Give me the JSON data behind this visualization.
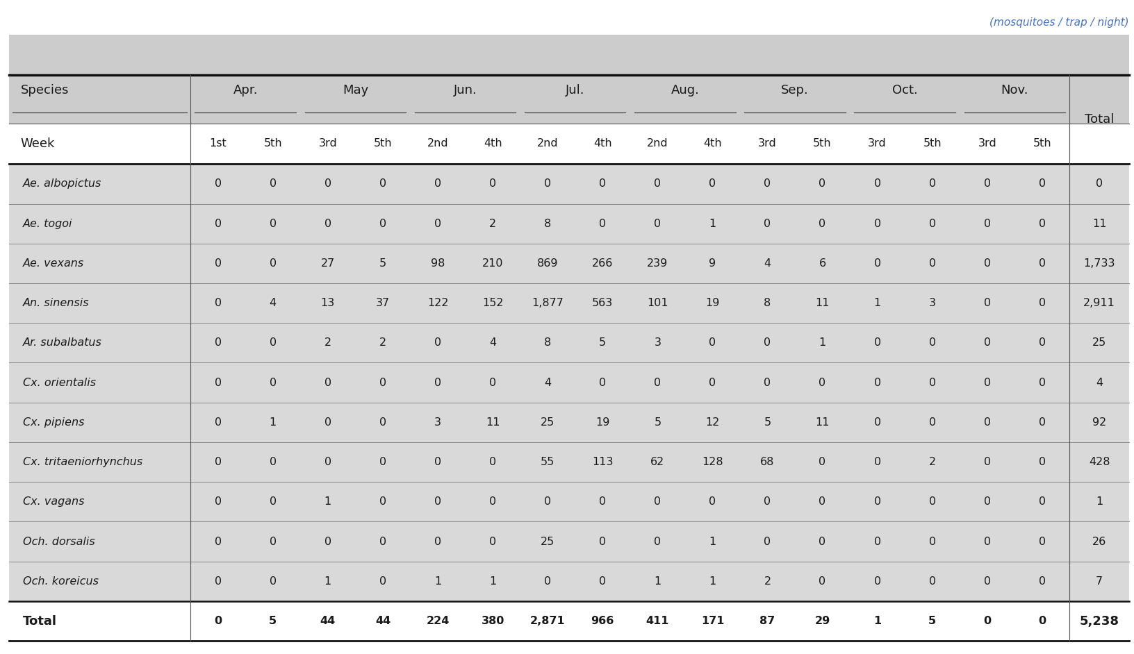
{
  "subtitle": "(mosquitoes / trap / night)",
  "months": [
    "Apr.",
    "May",
    "Jun.",
    "Jul.",
    "Aug.",
    "Sep.",
    "Oct.",
    "Nov."
  ],
  "week_labels": [
    "1st",
    "5th",
    "3rd",
    "5th",
    "2nd",
    "4th",
    "2nd",
    "4th",
    "2nd",
    "4th",
    "3rd",
    "5th",
    "3rd",
    "5th",
    "3rd",
    "5th"
  ],
  "species": [
    "Ae. albopictus",
    "Ae. togoi",
    "Ae. vexans",
    "An. sinensis",
    "Ar. subalbatus",
    "Cx. orientalis",
    "Cx. pipiens",
    "Cx. tritaeniorhynchus",
    "Cx. vagans",
    "Och. dorsalis",
    "Och. koreicus",
    "Total"
  ],
  "data": [
    [
      0,
      0,
      0,
      0,
      0,
      0,
      0,
      0,
      0,
      0,
      0,
      0,
      0,
      0,
      0,
      0
    ],
    [
      0,
      0,
      0,
      0,
      0,
      2,
      8,
      0,
      0,
      1,
      0,
      0,
      0,
      0,
      0,
      0
    ],
    [
      0,
      0,
      27,
      5,
      98,
      210,
      869,
      266,
      239,
      9,
      4,
      6,
      0,
      0,
      0,
      0
    ],
    [
      0,
      4,
      13,
      37,
      122,
      152,
      1877,
      563,
      101,
      19,
      8,
      11,
      1,
      3,
      0,
      0
    ],
    [
      0,
      0,
      2,
      2,
      0,
      4,
      8,
      5,
      3,
      0,
      0,
      1,
      0,
      0,
      0,
      0
    ],
    [
      0,
      0,
      0,
      0,
      0,
      0,
      4,
      0,
      0,
      0,
      0,
      0,
      0,
      0,
      0,
      0
    ],
    [
      0,
      1,
      0,
      0,
      3,
      11,
      25,
      19,
      5,
      12,
      5,
      11,
      0,
      0,
      0,
      0
    ],
    [
      0,
      0,
      0,
      0,
      0,
      0,
      55,
      113,
      62,
      128,
      68,
      0,
      0,
      2,
      0,
      0
    ],
    [
      0,
      0,
      1,
      0,
      0,
      0,
      0,
      0,
      0,
      0,
      0,
      0,
      0,
      0,
      0,
      0
    ],
    [
      0,
      0,
      0,
      0,
      0,
      0,
      25,
      0,
      0,
      1,
      0,
      0,
      0,
      0,
      0,
      0
    ],
    [
      0,
      0,
      1,
      0,
      1,
      1,
      0,
      0,
      1,
      1,
      2,
      0,
      0,
      0,
      0,
      0
    ],
    [
      0,
      5,
      44,
      44,
      224,
      380,
      2871,
      966,
      411,
      171,
      87,
      29,
      1,
      5,
      0,
      0
    ]
  ],
  "total_col_values": [
    "0",
    "11",
    "1,733",
    "2,911",
    "25",
    "4",
    "92",
    "428",
    "1",
    "26",
    "7",
    "5,238"
  ],
  "bg_color_header": "#cccccc",
  "bg_color_data": "#d9d9d9",
  "bg_color_total_row": "#ffffff",
  "line_color_thick": "#111111",
  "line_color_thin": "#888888",
  "text_color_normal": "#1a1a1a",
  "text_color_blue": "#4472c4",
  "font_size_header": 13,
  "font_size_week": 11.5,
  "font_size_data": 11.5,
  "font_size_subtitle": 11
}
